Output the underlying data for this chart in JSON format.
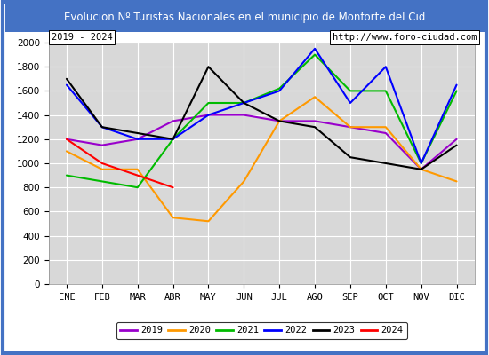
{
  "title": "Evolucion Nº Turistas Nacionales en el municipio de Monforte del Cid",
  "subtitle_left": "2019 - 2024",
  "subtitle_right": "http://www.foro-ciudad.com",
  "months": [
    "ENE",
    "FEB",
    "MAR",
    "ABR",
    "MAY",
    "JUN",
    "JUL",
    "AGO",
    "SEP",
    "OCT",
    "NOV",
    "DIC"
  ],
  "ylim": [
    0,
    2000
  ],
  "yticks": [
    0,
    200,
    400,
    600,
    800,
    1000,
    1200,
    1400,
    1600,
    1800,
    2000
  ],
  "series": {
    "2024": {
      "color": "#ff0000",
      "values": [
        1200,
        1000,
        900,
        800,
        null,
        null,
        null,
        null,
        null,
        null,
        null,
        null
      ]
    },
    "2023": {
      "color": "#000000",
      "values": [
        1700,
        1300,
        1250,
        1200,
        1800,
        1500,
        1350,
        1300,
        1050,
        1000,
        950,
        1150
      ]
    },
    "2022": {
      "color": "#0000ff",
      "values": [
        1650,
        1300,
        1200,
        1200,
        1400,
        1500,
        1600,
        1950,
        1500,
        1800,
        1000,
        1650
      ]
    },
    "2021": {
      "color": "#00bb00",
      "values": [
        900,
        850,
        800,
        1200,
        1500,
        1500,
        1620,
        1900,
        1600,
        1600,
        1000,
        1600
      ]
    },
    "2020": {
      "color": "#ff9900",
      "values": [
        1100,
        950,
        950,
        550,
        520,
        850,
        1350,
        1550,
        1300,
        1300,
        950,
        850
      ]
    },
    "2019": {
      "color": "#9900cc",
      "values": [
        1200,
        1150,
        1200,
        1350,
        1400,
        1400,
        1350,
        1350,
        1300,
        1250,
        950,
        1200
      ]
    }
  },
  "title_bg_color": "#4472c4",
  "title_font_color": "#ffffff",
  "plot_bg_color": "#d8d8d8",
  "border_color": "#4472c4",
  "grid_color": "#ffffff"
}
